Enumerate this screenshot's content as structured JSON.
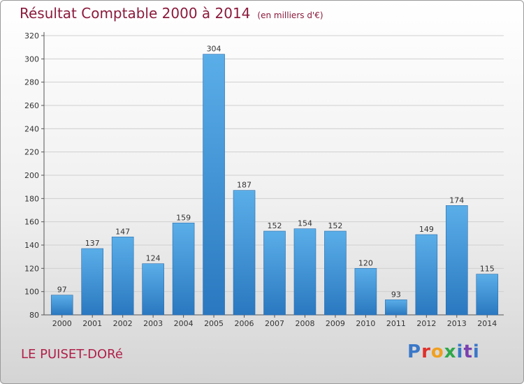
{
  "chart_data": {
    "type": "bar",
    "title": "Résultat Comptable 2000 à 2014",
    "subtitle": "(en milliers d'€)",
    "categories": [
      "2000",
      "2001",
      "2002",
      "2003",
      "2004",
      "2005",
      "2006",
      "2007",
      "2008",
      "2009",
      "2010",
      "2011",
      "2012",
      "2013",
      "2014"
    ],
    "values": [
      97,
      137,
      147,
      124,
      159,
      304,
      187,
      152,
      154,
      152,
      120,
      93,
      149,
      174,
      115
    ],
    "yticks": [
      80,
      100,
      120,
      140,
      160,
      180,
      200,
      220,
      240,
      260,
      280,
      300,
      320
    ],
    "ylim": [
      80,
      320
    ],
    "xlabel": "",
    "ylabel": "",
    "grid": true,
    "bar_color_top": "#5aaee8",
    "bar_color_bottom": "#2a78c0"
  },
  "commune": "LE PUISET-DORé",
  "logo": {
    "text": "Proxiti",
    "colors": [
      "#3a78c8",
      "#e0302a",
      "#f0a020",
      "#2ea84a",
      "#3a78c8",
      "#7a3fb0"
    ]
  }
}
